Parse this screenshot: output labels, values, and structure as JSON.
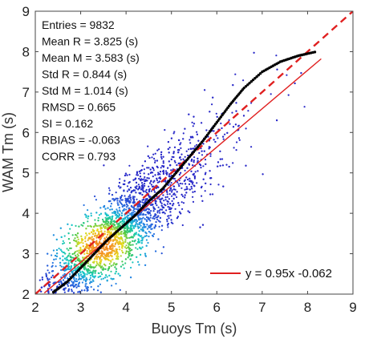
{
  "chart_data": {
    "type": "scatter",
    "xlabel": "Buoys Tm (s)",
    "ylabel": "WAM  Tm (s)",
    "xlim": [
      2,
      9
    ],
    "ylim": [
      2,
      9
    ],
    "xticks": [
      "2",
      "3",
      "4",
      "5",
      "6",
      "7",
      "8",
      "9"
    ],
    "yticks": [
      "2",
      "3",
      "4",
      "5",
      "6",
      "7",
      "8",
      "9"
    ],
    "grid": false,
    "colormap": "density (blue → cyan → green → yellow → orange)",
    "stats": [
      "Entries = 9832",
      "Mean R = 3.825 (s)",
      "Mean M = 3.583 (s)",
      "Std R = 0.844 (s)",
      "Std M = 1.014 (s)",
      "RMSD = 0.665",
      "SI = 0.162",
      "RBIAS = -0.063",
      "CORR = 0.793"
    ],
    "fit": {
      "slope": 0.95,
      "intercept": -0.062,
      "label": "y = 0.95x -0.062",
      "color": "#e02020"
    },
    "identity": {
      "x": [
        2,
        9
      ],
      "y": [
        2,
        9
      ],
      "color": "#e02020",
      "style": "dashed"
    },
    "qq": {
      "color": "#000000",
      "x": [
        2.4,
        2.7,
        3.0,
        3.3,
        3.6,
        3.9,
        4.2,
        4.5,
        4.8,
        5.1,
        5.4,
        5.7,
        6.0,
        6.3,
        6.6,
        7.0,
        7.4,
        7.8,
        8.2
      ],
      "y": [
        2.05,
        2.3,
        2.65,
        3.0,
        3.35,
        3.65,
        3.95,
        4.3,
        4.6,
        5.0,
        5.4,
        5.8,
        6.25,
        6.7,
        7.1,
        7.5,
        7.75,
        7.9,
        8.0
      ]
    }
  }
}
